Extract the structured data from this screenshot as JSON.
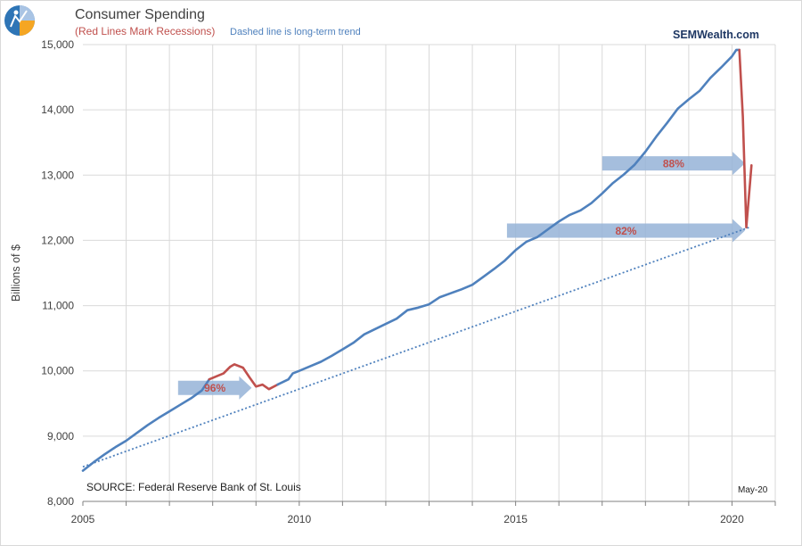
{
  "chart_data": {
    "type": "line",
    "title": "Consumer Spending",
    "subtitle_red": "(Red Lines Mark Recessions)",
    "subtitle_blue": "Dashed line is long-term trend",
    "brand": "SEMWealth.com",
    "ylabel": "Billions of $",
    "xlabel": "",
    "source": "SOURCE:  Federal Reserve Bank of St. Louis",
    "date_label": "May-20",
    "xlim": [
      2005,
      2021
    ],
    "ylim": [
      8000,
      15000
    ],
    "grid": true,
    "x_ticks": [
      "2005",
      "2010",
      "2015",
      "2020"
    ],
    "y_ticks": [
      "8,000",
      "9,000",
      "10,000",
      "11,000",
      "12,000",
      "13,000",
      "14,000",
      "15,000"
    ],
    "colors": {
      "spending": "#4f81bd",
      "recession": "#c0504d",
      "trend": "#4f81bd",
      "arrow": "#95b3d7"
    },
    "series": [
      {
        "style": "solid",
        "points": [
          [
            2005.0,
            8470
          ],
          [
            2005.25,
            8600
          ],
          [
            2005.5,
            8720
          ],
          [
            2005.75,
            8830
          ],
          [
            2006.0,
            8930
          ],
          [
            2006.25,
            9050
          ],
          [
            2006.5,
            9170
          ],
          [
            2006.75,
            9280
          ],
          [
            2007.0,
            9380
          ],
          [
            2007.25,
            9480
          ],
          [
            2007.5,
            9580
          ],
          [
            2007.75,
            9700
          ],
          [
            2007.92,
            9870
          ]
        ]
      },
      {
        "style": "recession",
        "points": [
          [
            2007.92,
            9870
          ],
          [
            2008.1,
            9920
          ],
          [
            2008.25,
            9960
          ],
          [
            2008.4,
            10060
          ],
          [
            2008.5,
            10100
          ],
          [
            2008.7,
            10050
          ],
          [
            2008.85,
            9900
          ],
          [
            2009.0,
            9760
          ],
          [
            2009.15,
            9790
          ],
          [
            2009.3,
            9720
          ],
          [
            2009.5,
            9790
          ]
        ]
      },
      {
        "style": "solid",
        "points": [
          [
            2009.5,
            9790
          ],
          [
            2009.75,
            9870
          ],
          [
            2009.85,
            9960
          ],
          [
            2010.0,
            10000
          ],
          [
            2010.25,
            10070
          ],
          [
            2010.5,
            10140
          ],
          [
            2010.75,
            10230
          ],
          [
            2011.0,
            10330
          ],
          [
            2011.25,
            10430
          ],
          [
            2011.5,
            10560
          ],
          [
            2011.75,
            10640
          ],
          [
            2012.0,
            10720
          ],
          [
            2012.25,
            10800
          ],
          [
            2012.5,
            10930
          ],
          [
            2012.75,
            10970
          ],
          [
            2013.0,
            11020
          ],
          [
            2013.25,
            11130
          ],
          [
            2013.5,
            11190
          ],
          [
            2013.75,
            11250
          ],
          [
            2014.0,
            11320
          ],
          [
            2014.25,
            11440
          ],
          [
            2014.5,
            11560
          ],
          [
            2014.75,
            11690
          ],
          [
            2015.0,
            11850
          ],
          [
            2015.25,
            11980
          ],
          [
            2015.5,
            12050
          ],
          [
            2015.75,
            12170
          ],
          [
            2016.0,
            12290
          ],
          [
            2016.25,
            12390
          ],
          [
            2016.5,
            12460
          ],
          [
            2016.75,
            12570
          ],
          [
            2017.0,
            12720
          ],
          [
            2017.25,
            12880
          ],
          [
            2017.5,
            13010
          ],
          [
            2017.75,
            13160
          ],
          [
            2018.0,
            13360
          ],
          [
            2018.25,
            13590
          ],
          [
            2018.5,
            13800
          ],
          [
            2018.75,
            14020
          ],
          [
            2019.0,
            14160
          ],
          [
            2019.25,
            14290
          ],
          [
            2019.5,
            14490
          ],
          [
            2019.75,
            14650
          ],
          [
            2020.0,
            14820
          ],
          [
            2020.1,
            14920
          ],
          [
            2020.17,
            14920
          ]
        ]
      },
      {
        "style": "recession",
        "points": [
          [
            2020.17,
            14920
          ],
          [
            2020.25,
            13900
          ],
          [
            2020.33,
            12200
          ],
          [
            2020.42,
            12900
          ],
          [
            2020.45,
            13150
          ]
        ]
      }
    ],
    "trend_line": {
      "from": [
        2005.0,
        8530
      ],
      "to": [
        2020.4,
        12200
      ]
    },
    "annotations": [
      {
        "text": "96%",
        "x_start": 2007.2,
        "x_end": 2008.9,
        "y": 9740
      },
      {
        "text": "82%",
        "x_start": 2014.8,
        "x_end": 2020.3,
        "y": 12150
      },
      {
        "text": "88%",
        "x_start": 2017.0,
        "x_end": 2020.3,
        "y": 13180
      }
    ]
  }
}
